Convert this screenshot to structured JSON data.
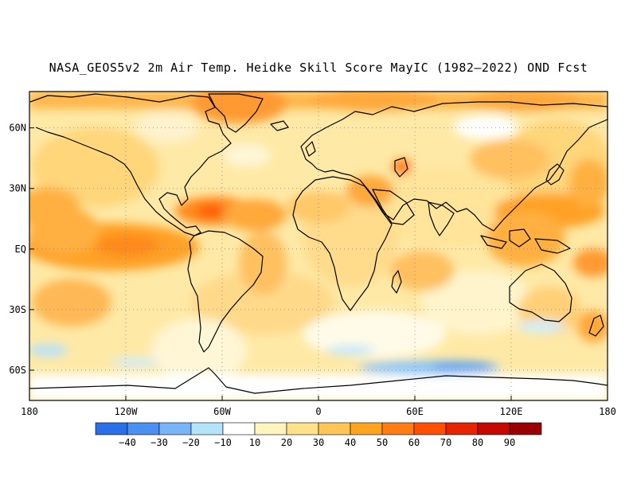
{
  "title": "NASA_GEOS5v2 2m Air Temp. Heidke Skill Score MayIC (1982–2022) OND Fcst",
  "axes": {
    "lat_labels": [
      "60N",
      "30N",
      "EQ",
      "30S",
      "60S"
    ],
    "lat_values": [
      60,
      30,
      0,
      -30,
      -60
    ],
    "lon_labels": [
      "180",
      "120W",
      "60W",
      "0",
      "60E",
      "120E",
      "180"
    ],
    "lon_values": [
      -180,
      -120,
      -60,
      0,
      60,
      120,
      180
    ],
    "lon_range": [
      -180,
      180
    ],
    "lat_range": [
      -75,
      78
    ],
    "grid": "dotted"
  },
  "colorbar": {
    "tick_labels": [
      "−40",
      "−30",
      "−20",
      "−10",
      "10",
      "20",
      "30",
      "40",
      "50",
      "60",
      "70",
      "80",
      "90"
    ],
    "colors": [
      "#2a6fe8",
      "#4a90f0",
      "#78b4f8",
      "#b4e4fa",
      "#ffffff",
      "#fff6bf",
      "#ffe18a",
      "#ffc655",
      "#ffa41e",
      "#ff7d12",
      "#ff4f00",
      "#e62400",
      "#c50900",
      "#9b0000"
    ]
  },
  "skill_regions": [
    {
      "region": "central-equatorial-pacific",
      "lon": -140,
      "lat": 0,
      "value": 55
    },
    {
      "region": "caribbean",
      "lon": -72,
      "lat": 20,
      "value": 65
    },
    {
      "region": "east-asia-pacific",
      "lon": 140,
      "lat": 22,
      "value": 45
    },
    {
      "region": "arctic-ocean",
      "lon": 0,
      "lat": 75,
      "value": 45
    },
    {
      "region": "southern-ocean-south-of-africa",
      "lon": 50,
      "lat": -60,
      "value": -25
    },
    {
      "region": "southern-ocean-south-of-australia",
      "lon": 110,
      "lat": -60,
      "value": -35
    },
    {
      "region": "south-pacific",
      "lon": -150,
      "lat": -55,
      "value": -15
    }
  ]
}
